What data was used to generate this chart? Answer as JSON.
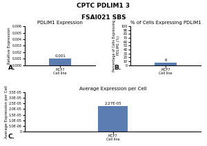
{
  "title_line1": "CPTC PDLIM1 3",
  "title_line2": "FSAI021 SBS",
  "panel_A": {
    "title": "PDLIM1 Expression",
    "ylabel": "Relative Expression",
    "xlabel": "MCF7\nCell line",
    "label": "A.",
    "value": 0.001,
    "bar_value_label": "0.001",
    "ylim": [
      0,
      0.006
    ],
    "yticks": [
      0.0,
      0.001,
      0.002,
      0.003,
      0.004,
      0.005,
      0.006
    ],
    "ytick_labels": [
      "0.000",
      "0.001",
      "0.002",
      "0.003",
      "0.004",
      "0.005",
      "0.006"
    ],
    "color": "#5b7db1"
  },
  "panel_B": {
    "title": "% of Cells Expressing PDLIM1",
    "ylabel": "Percentage of Cells Expressing\nPDLIM1 (%)",
    "xlabel": "MCF7\nCell line",
    "label": "B.",
    "value": 6,
    "bar_value_label": "6",
    "ylim": [
      0,
      100
    ],
    "yticks": [
      0,
      10,
      20,
      30,
      40,
      50,
      60,
      70,
      80,
      90,
      100
    ],
    "ytick_labels": [
      "0",
      "10",
      "20",
      "30",
      "40",
      "50",
      "60",
      "70",
      "80",
      "90",
      "100"
    ],
    "color": "#5b7db1"
  },
  "panel_C": {
    "title": "Average Expression per Cell",
    "ylabel": "Average Expression per Cell",
    "xlabel": "MCF7\nCell line",
    "label": "C.",
    "value": 2.27e-05,
    "bar_value_label": "2.27E-05",
    "ylim": [
      0,
      3.5e-05
    ],
    "yticks": [
      0.0,
      5e-06,
      1e-05,
      1.5e-05,
      2e-05,
      2.5e-05,
      3e-05,
      3.5e-05
    ],
    "ytick_labels": [
      "0",
      "5.0E-06",
      "1.0E-05",
      "1.5E-05",
      "2.0E-05",
      "2.5E-05",
      "3.0E-05",
      "3.5E-05"
    ],
    "color": "#5b7db1"
  },
  "background_color": "#ffffff",
  "title_fontsize": 6.5,
  "subtitle_fontsize": 6.5,
  "panel_title_fontsize": 5,
  "axis_label_fontsize": 4,
  "tick_fontsize": 3.5,
  "bar_label_fontsize": 4
}
